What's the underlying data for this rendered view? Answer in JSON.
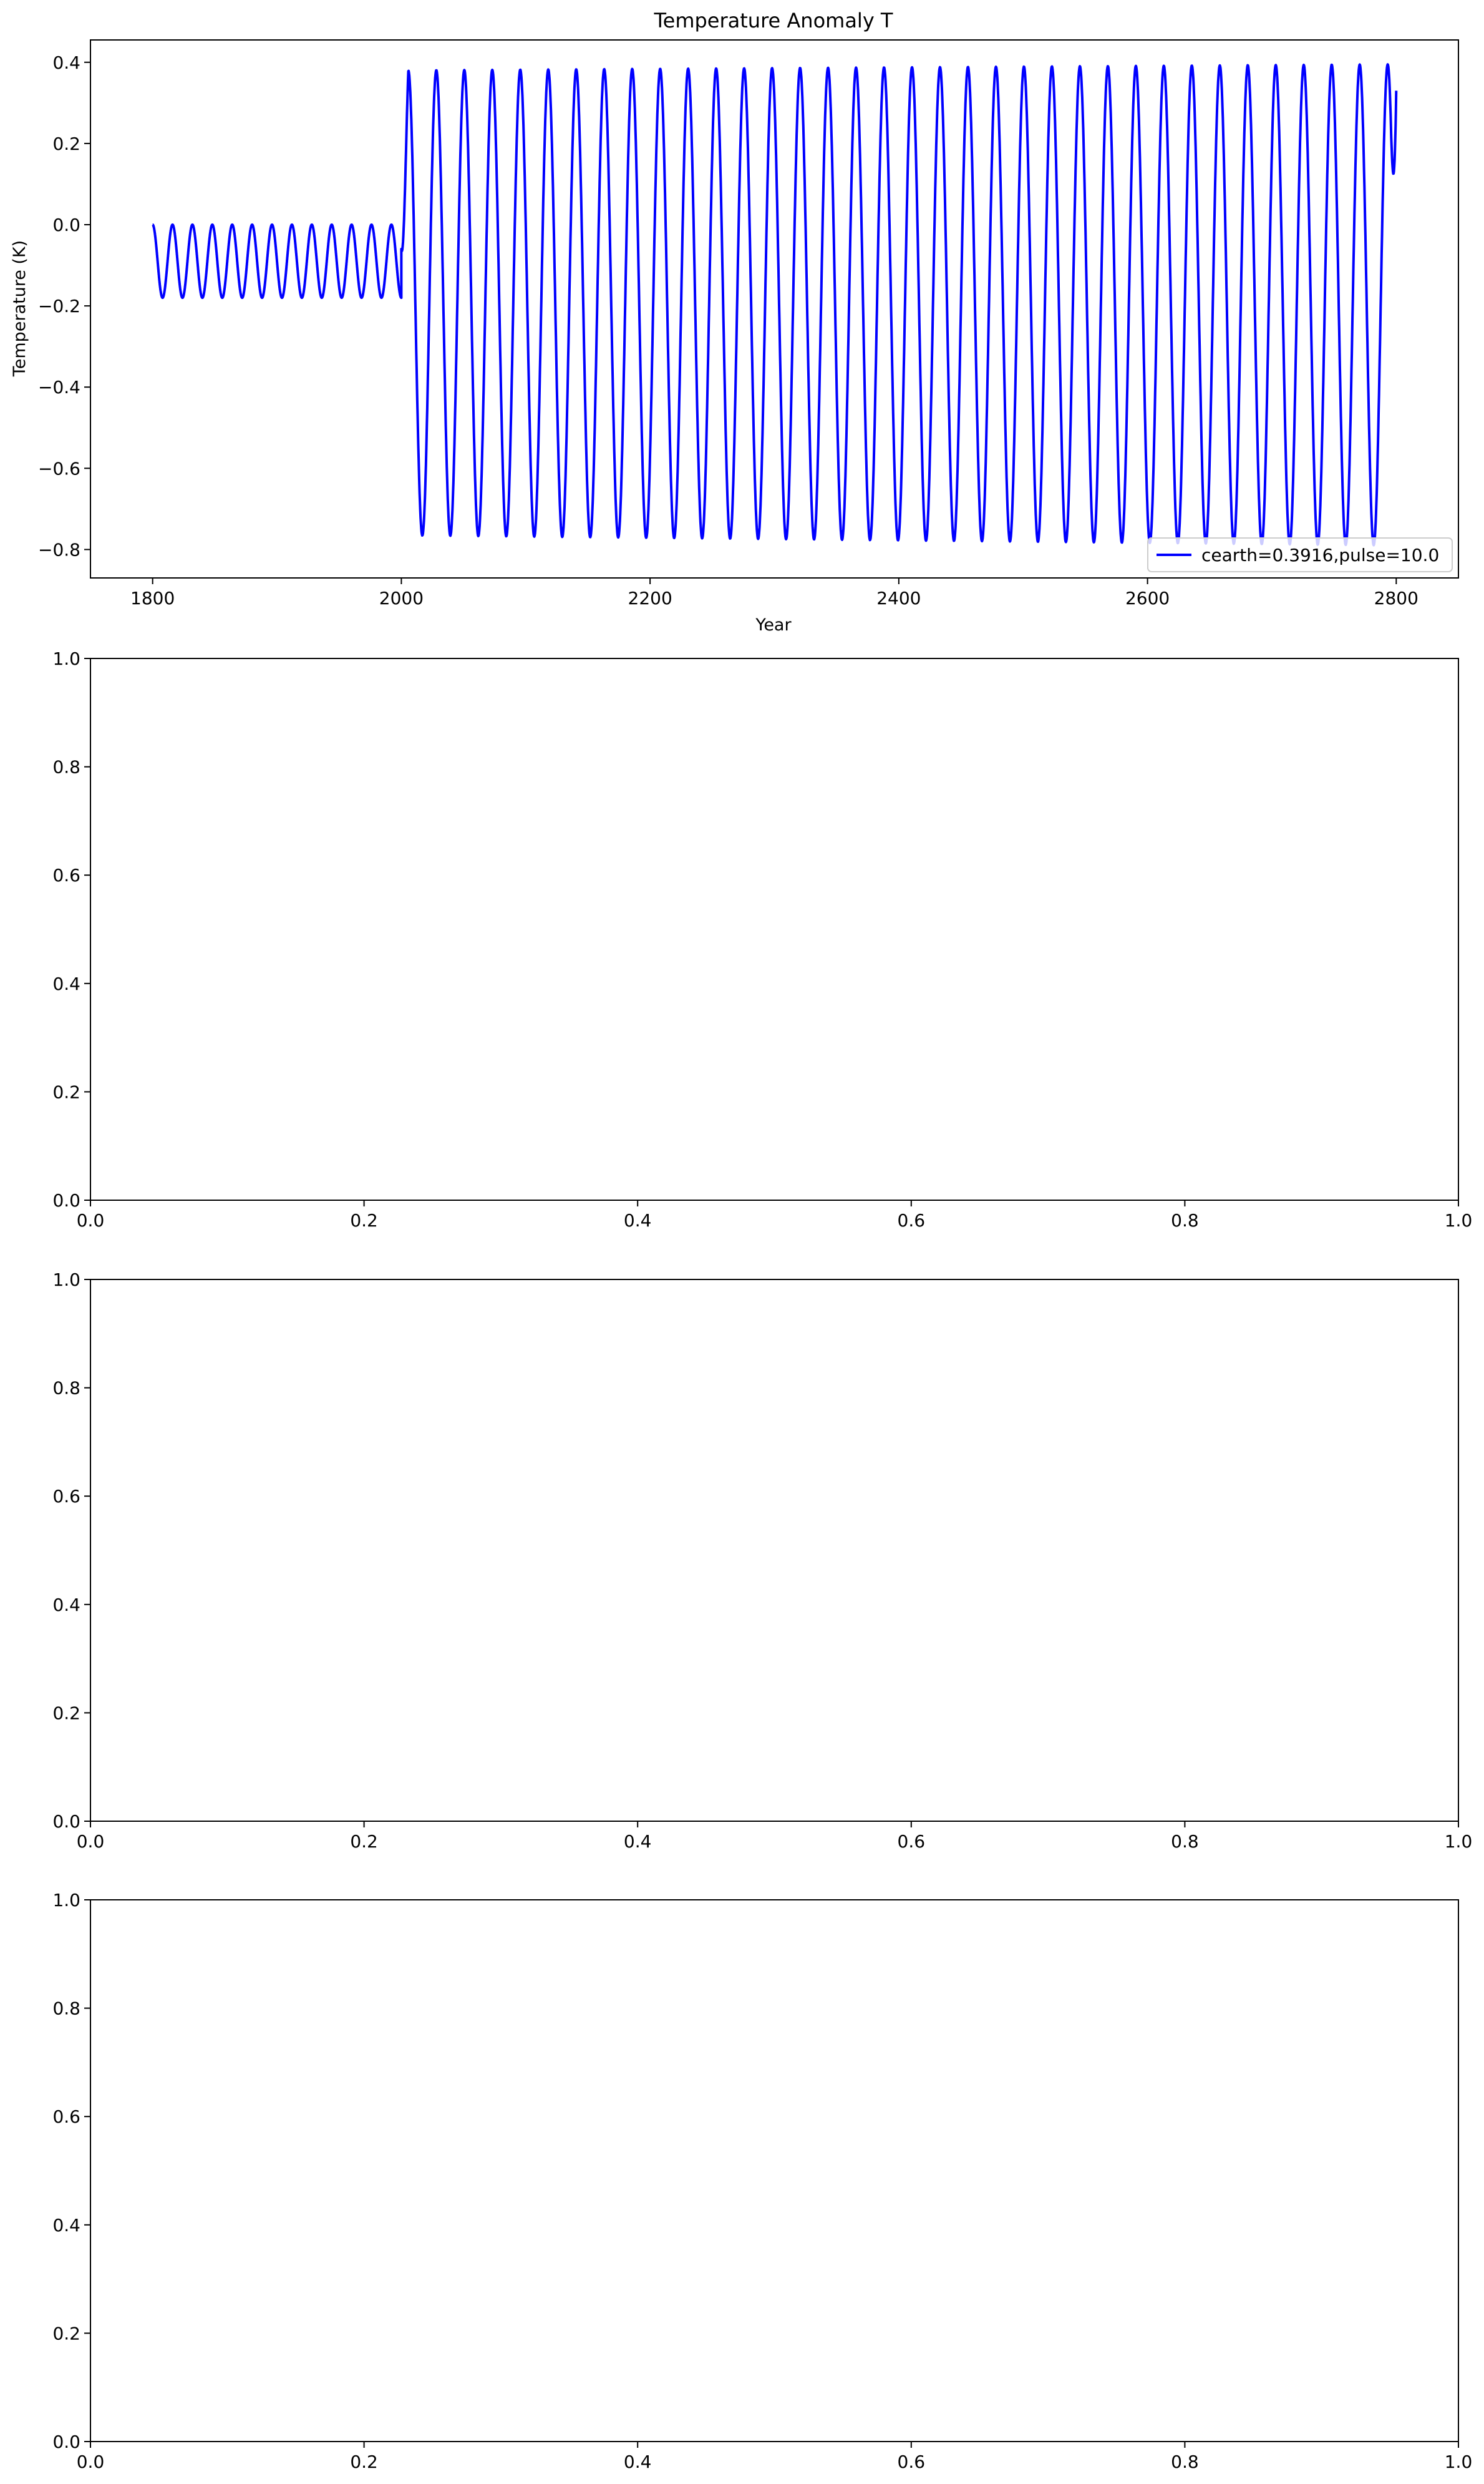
{
  "figure": {
    "title": "Temperature Anomaly T"
  },
  "colors": {
    "series": "#0000ff",
    "axes": "#000000",
    "background": "#ffffff",
    "legend_border": "#cccccc"
  },
  "chart_data": [
    {
      "type": "line",
      "title": "Temperature Anomaly T",
      "xlabel": "Year",
      "ylabel": "Temperature (K)",
      "xlim": [
        1750,
        2850
      ],
      "ylim": [
        -0.87,
        0.455
      ],
      "xticks": [
        1800,
        2000,
        2200,
        2400,
        2600,
        2800
      ],
      "xtick_labels": [
        "1800",
        "2000",
        "2200",
        "2400",
        "2600",
        "2800"
      ],
      "yticks": [
        -0.8,
        -0.6,
        -0.4,
        -0.2,
        0.0,
        0.2,
        0.4
      ],
      "ytick_labels": [
        "−0.8",
        "−0.6",
        "−0.4",
        "−0.2",
        "0.0",
        "0.2",
        "0.4"
      ],
      "legend": {
        "placement": "lower-right",
        "entries": [
          "cearth=0.3916,pulse=10.0"
        ]
      },
      "series": [
        {
          "name": "cearth=0.3916,pulse=10.0",
          "color": "#0000ff",
          "segments": [
            {
              "x_start": 1800,
              "x_end": 2000,
              "period": 16,
              "min": -0.18,
              "max": 0.0,
              "start_phase": "max"
            },
            {
              "x_start": 2000,
              "x_end": 2800,
              "period": 22.5,
              "min": -0.765,
              "max": 0.38,
              "min_end": -0.79,
              "max_end": 0.395,
              "start_value": -0.06,
              "end_value": 0.33
            }
          ]
        }
      ]
    },
    {
      "type": "line",
      "title": "",
      "xlabel": "",
      "ylabel": "",
      "xlim": [
        0,
        1
      ],
      "ylim": [
        0,
        1
      ],
      "xticks": [
        0,
        0.2,
        0.4,
        0.6,
        0.8,
        1.0
      ],
      "xtick_labels": [
        "0.0",
        "0.2",
        "0.4",
        "0.6",
        "0.8",
        "1.0"
      ],
      "yticks": [
        0,
        0.2,
        0.4,
        0.6,
        0.8,
        1.0
      ],
      "ytick_labels": [
        "0.0",
        "0.2",
        "0.4",
        "0.6",
        "0.8",
        "1.0"
      ],
      "series": []
    },
    {
      "type": "line",
      "title": "",
      "xlabel": "",
      "ylabel": "",
      "xlim": [
        0,
        1
      ],
      "ylim": [
        0,
        1
      ],
      "xticks": [
        0,
        0.2,
        0.4,
        0.6,
        0.8,
        1.0
      ],
      "xtick_labels": [
        "0.0",
        "0.2",
        "0.4",
        "0.6",
        "0.8",
        "1.0"
      ],
      "yticks": [
        0,
        0.2,
        0.4,
        0.6,
        0.8,
        1.0
      ],
      "ytick_labels": [
        "0.0",
        "0.2",
        "0.4",
        "0.6",
        "0.8",
        "1.0"
      ],
      "series": []
    },
    {
      "type": "line",
      "title": "",
      "xlabel": "",
      "ylabel": "",
      "xlim": [
        0,
        1
      ],
      "ylim": [
        0,
        1
      ],
      "xticks": [
        0,
        0.2,
        0.4,
        0.6,
        0.8,
        1.0
      ],
      "xtick_labels": [
        "0.0",
        "0.2",
        "0.4",
        "0.6",
        "0.8",
        "1.0"
      ],
      "yticks": [
        0,
        0.2,
        0.4,
        0.6,
        0.8,
        1.0
      ],
      "ytick_labels": [
        "0.0",
        "0.2",
        "0.4",
        "0.6",
        "0.8",
        "1.0"
      ],
      "series": []
    }
  ]
}
